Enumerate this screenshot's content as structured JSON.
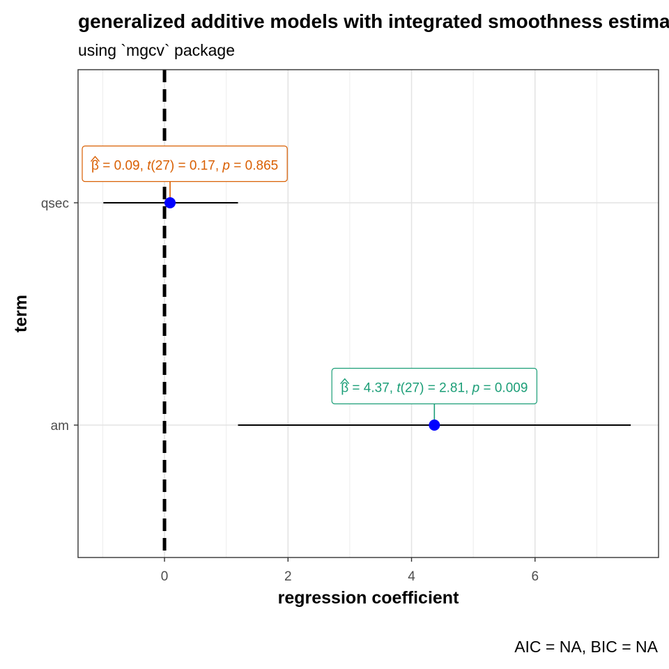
{
  "chart_data": {
    "type": "scatter",
    "title": "generalized additive models with integrated smoothness estimation",
    "subtitle": "using `mgcv` package",
    "xlabel": "regression coefficient",
    "ylabel": "term",
    "caption": "AIC = NA, BIC = NA",
    "xlim": [
      -1.4,
      8.0
    ],
    "x_ticks": [
      0,
      2,
      4,
      6
    ],
    "x_tick_labels": [
      "0",
      "2",
      "4",
      "6"
    ],
    "categories": [
      "qsec",
      "am"
    ],
    "grid": true,
    "reference_line": {
      "x": 0,
      "style": "dashed"
    },
    "point_color": "#0000FF",
    "terms": [
      {
        "term": "qsec",
        "estimate": 0.09,
        "conf_low": -0.99,
        "conf_high": 1.19,
        "label_color": "#D95F02",
        "label": {
          "beta": "0.09",
          "df": "27",
          "t": "0.17",
          "p": "0.865"
        }
      },
      {
        "term": "am",
        "estimate": 4.37,
        "conf_low": 1.19,
        "conf_high": 7.55,
        "label_color": "#1B9E77",
        "label": {
          "beta": "4.37",
          "df": "27",
          "t": "2.81",
          "p": "0.009"
        }
      }
    ]
  }
}
